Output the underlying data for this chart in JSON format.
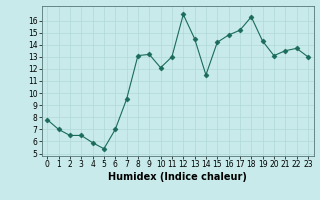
{
  "x": [
    0,
    1,
    2,
    3,
    4,
    5,
    6,
    7,
    8,
    9,
    10,
    11,
    12,
    13,
    14,
    15,
    16,
    17,
    18,
    19,
    20,
    21,
    22,
    23
  ],
  "y": [
    7.8,
    7.0,
    6.5,
    6.5,
    5.9,
    5.4,
    7.0,
    9.5,
    13.1,
    13.2,
    12.1,
    13.0,
    16.5,
    14.5,
    11.5,
    14.2,
    14.8,
    15.2,
    16.3,
    14.3,
    13.1,
    13.5,
    13.7,
    13.0
  ],
  "line_color": "#1a6b5a",
  "marker": "D",
  "marker_size": 2.5,
  "bg_color": "#c8eaea",
  "grid_color": "#b0d8d8",
  "xlabel": "Humidex (Indice chaleur)",
  "ylim": [
    4.8,
    17.2
  ],
  "xlim": [
    -0.5,
    23.5
  ],
  "yticks": [
    5,
    6,
    7,
    8,
    9,
    10,
    11,
    12,
    13,
    14,
    15,
    16
  ],
  "xticks": [
    0,
    1,
    2,
    3,
    4,
    5,
    6,
    7,
    8,
    9,
    10,
    11,
    12,
    13,
    14,
    15,
    16,
    17,
    18,
    19,
    20,
    21,
    22,
    23
  ],
  "tick_fontsize": 5.5,
  "label_fontsize": 7
}
